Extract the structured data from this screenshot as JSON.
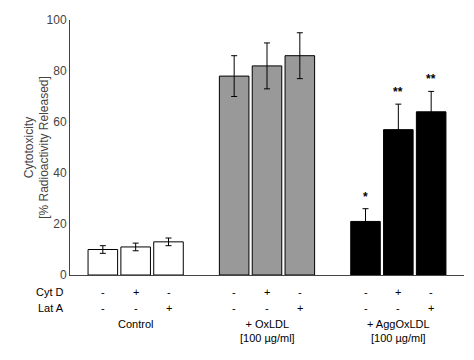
{
  "chart_data": {
    "type": "bar",
    "categories": [
      "Control",
      "+ OxLDL\n[100 µg/ml]",
      "+ AggOxLDL\n[100 µg/ml]"
    ],
    "series": [
      {
        "values": [
          10,
          78,
          21
        ],
        "errors": [
          1.5,
          8,
          5
        ],
        "colors": [
          "#ffffff",
          "#999999",
          "#000000"
        ]
      },
      {
        "values": [
          11,
          82,
          57
        ],
        "errors": [
          1.5,
          9,
          10
        ],
        "colors": [
          "#ffffff",
          "#999999",
          "#000000"
        ]
      },
      {
        "values": [
          13,
          86,
          64
        ],
        "errors": [
          1.5,
          9,
          8
        ],
        "colors": [
          "#ffffff",
          "#999999",
          "#000000"
        ]
      }
    ],
    "ylabel": "Cytotoxicity\n[% Radioactivity Released]",
    "ylim": [
      0,
      100
    ],
    "yticks": [
      0,
      20,
      40,
      60,
      80,
      100
    ],
    "grid": false,
    "tick_labels": "y",
    "below_labels": [
      {
        "name": "Cyt D",
        "labels": [
          "-",
          "+",
          "-",
          "-",
          "+",
          "-",
          "-",
          "+",
          "-"
        ]
      },
      {
        "name": "Lat A",
        "labels": [
          "-",
          "-",
          "+",
          "-",
          "-",
          "+",
          "-",
          "-",
          "+"
        ]
      }
    ],
    "annotations": [
      {
        "category": 2,
        "series": 0,
        "text": "*"
      },
      {
        "category": 2,
        "series": 1,
        "text": "**"
      },
      {
        "category": 2,
        "series": 2,
        "text": "**"
      }
    ]
  }
}
